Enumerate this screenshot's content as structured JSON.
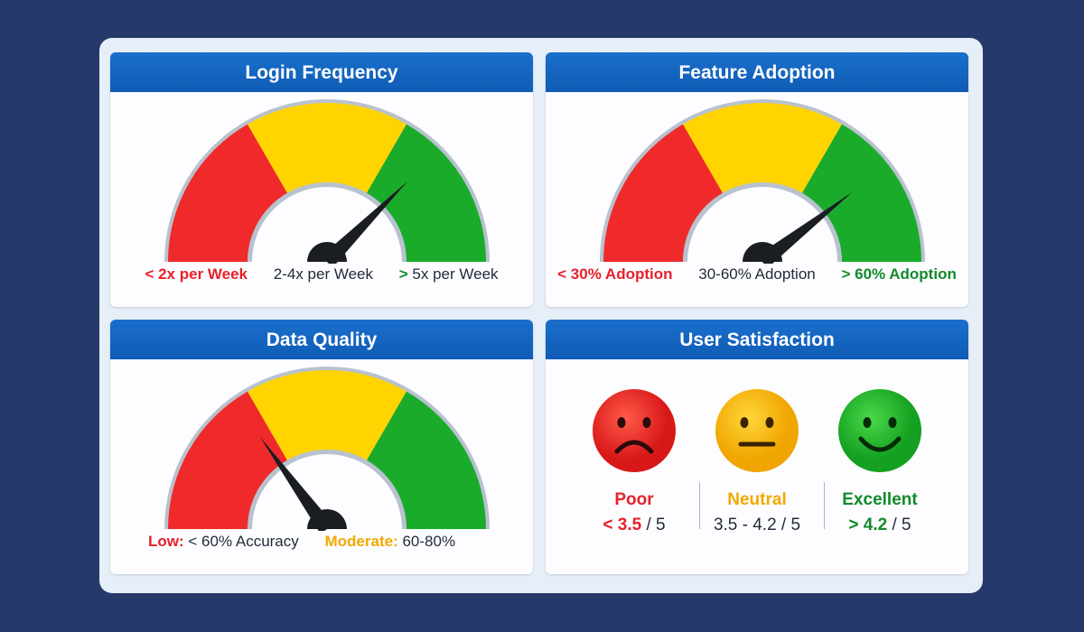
{
  "colors": {
    "red": "#f02a2a",
    "yellow": "#ffd400",
    "green": "#1aab2a",
    "header": "#1565c0"
  },
  "gauges": [
    {
      "title": "Login Frequency",
      "value": 0.75,
      "legend": [
        {
          "text": "< 2x per Week",
          "style": "red"
        },
        {
          "text": "2-4x per Week",
          "style": ""
        },
        {
          "prefix": ">",
          "text": "5x per Week"
        }
      ]
    },
    {
      "title": "Feature Adoption",
      "value": 0.79,
      "legend": [
        {
          "text": "< 30% Adoption",
          "style": "red"
        },
        {
          "text": "30-60% Adoption",
          "style": ""
        },
        {
          "text": "> 60% Adoption",
          "style": "grn"
        }
      ]
    },
    {
      "title": "Data Quality",
      "value": 0.3,
      "legend": [
        {
          "key": "Low:",
          "text": "< 60% Accuracy"
        },
        {
          "key": "Moderate:",
          "text": "60-80%"
        }
      ]
    }
  ],
  "satisfaction": {
    "title": "User Satisfaction",
    "items": [
      {
        "label": "Poor",
        "op": "<",
        "num": "3.5",
        "rest": "/ 5"
      },
      {
        "label": "Neutral",
        "range": "3.5 - 4.2 / 5"
      },
      {
        "label": "Excellent",
        "op": ">",
        "num": "4.2",
        "rest": "/ 5"
      }
    ]
  }
}
